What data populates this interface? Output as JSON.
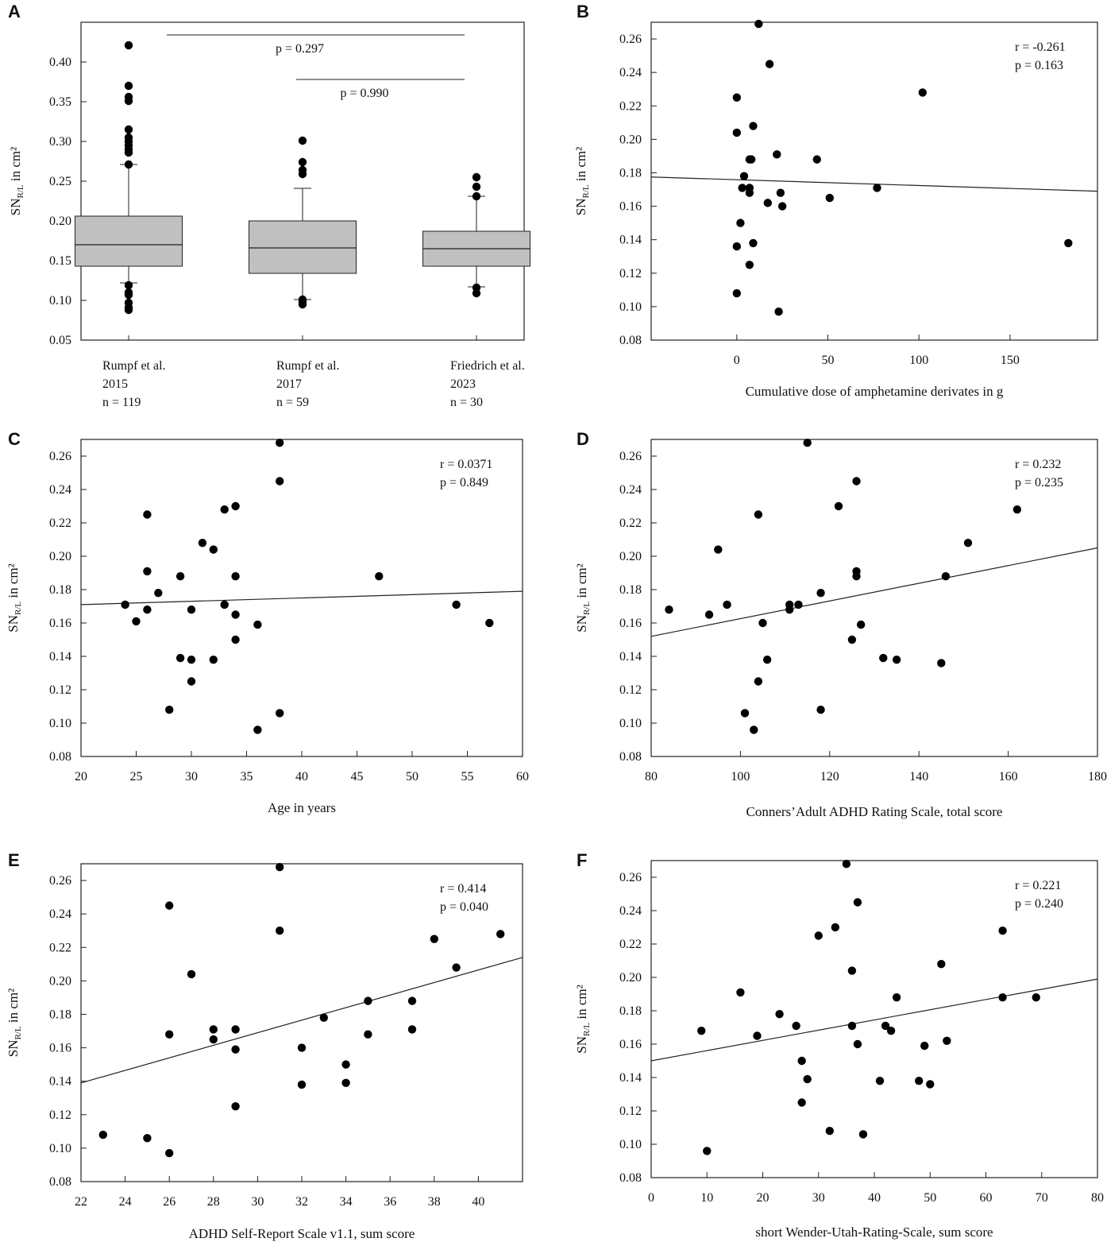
{
  "figure_title": "",
  "chart_data": [
    {
      "id": "A",
      "type": "box",
      "panel_label": "A",
      "ylabel_main": "SN",
      "ylabel_sub": "R/L",
      "ylabel_rest": " in cm²",
      "xlabel": "",
      "ylim": [
        0.05,
        0.45
      ],
      "yticks": [
        "0.05",
        "0.10",
        "0.15",
        "0.20",
        "0.25",
        "0.30",
        "0.35",
        "0.40"
      ],
      "groups": [
        {
          "line1": "Rumpf et al.",
          "line2": "2015",
          "line3": "n = 119",
          "q1": 0.143,
          "median": 0.17,
          "q3": 0.206,
          "whisker_low": 0.122,
          "whisker_high": 0.271,
          "outliers": [
            0.421,
            0.37,
            0.356,
            0.351,
            0.315,
            0.305,
            0.3,
            0.295,
            0.29,
            0.286,
            0.271,
            0.119,
            0.11,
            0.107,
            0.097,
            0.091,
            0.088
          ]
        },
        {
          "line1": "Rumpf et al.",
          "line2": "2017",
          "line3": "n = 59",
          "q1": 0.134,
          "median": 0.166,
          "q3": 0.2,
          "whisker_low": 0.101,
          "whisker_high": 0.241,
          "outliers": [
            0.301,
            0.274,
            0.264,
            0.259,
            0.101,
            0.098,
            0.095
          ]
        },
        {
          "line1": "Friedrich et al.",
          "line2": "2023",
          "line3": " n = 30",
          "q1": 0.143,
          "median": 0.165,
          "q3": 0.187,
          "whisker_low": 0.117,
          "whisker_high": 0.231,
          "outliers": [
            0.255,
            0.243,
            0.231,
            0.116,
            0.109
          ]
        }
      ],
      "comparisons": [
        {
          "label": "p = 0.297",
          "y": 0.434,
          "from_group": 0,
          "to_group": 2
        },
        {
          "label": "p = 0.990",
          "y": 0.378,
          "from_group": 1,
          "to_group": 2
        }
      ]
    },
    {
      "id": "B",
      "type": "scatter",
      "panel_label": "B",
      "ylabel_main": "SN",
      "ylabel_sub": "R/L",
      "ylabel_rest": " in cm²",
      "xlabel": "Cumulative dose of amphetamine derivates in g",
      "xlim": [
        -47,
        198
      ],
      "ylim": [
        0.08,
        0.27
      ],
      "xticks": [
        0,
        50,
        100,
        150
      ],
      "yticks": [
        "0.08",
        "0.10",
        "0.12",
        "0.14",
        "0.16",
        "0.18",
        "0.20",
        "0.22",
        "0.24",
        "0.26"
      ],
      "stat_r": "r = -0.261",
      "stat_p": "p = 0.163",
      "fit": {
        "x0": -47,
        "y0": 0.1775,
        "x1": 198,
        "y1": 0.169
      },
      "points": [
        [
          12,
          0.269
        ],
        [
          18,
          0.245
        ],
        [
          0,
          0.225
        ],
        [
          102,
          0.228
        ],
        [
          0,
          0.204
        ],
        [
          9,
          0.208
        ],
        [
          22,
          0.191
        ],
        [
          7,
          0.188
        ],
        [
          8,
          0.188
        ],
        [
          44,
          0.188
        ],
        [
          4,
          0.178
        ],
        [
          3,
          0.171
        ],
        [
          7,
          0.171
        ],
        [
          7,
          0.168
        ],
        [
          77,
          0.171
        ],
        [
          24,
          0.168
        ],
        [
          17,
          0.162
        ],
        [
          25,
          0.16
        ],
        [
          51,
          0.165
        ],
        [
          2,
          0.15
        ],
        [
          9,
          0.138
        ],
        [
          0,
          0.136
        ],
        [
          7,
          0.125
        ],
        [
          0,
          0.108
        ],
        [
          23,
          0.097
        ],
        [
          182,
          0.138
        ]
      ]
    },
    {
      "id": "C",
      "type": "scatter",
      "panel_label": "C",
      "ylabel_main": "SN",
      "ylabel_sub": "R/L",
      "ylabel_rest": " in cm²",
      "xlabel": "Age in years",
      "xlim": [
        20,
        60
      ],
      "ylim": [
        0.08,
        0.27
      ],
      "xticks": [
        20,
        25,
        30,
        35,
        40,
        45,
        50,
        55,
        60
      ],
      "yticks": [
        "0.08",
        "0.10",
        "0.12",
        "0.14",
        "0.16",
        "0.18",
        "0.20",
        "0.22",
        "0.24",
        "0.26"
      ],
      "stat_r": "r = 0.0371",
      "stat_p": "p = 0.849",
      "fit": {
        "x0": 20,
        "y0": 0.171,
        "x1": 60,
        "y1": 0.179
      },
      "points": [
        [
          38,
          0.268
        ],
        [
          38,
          0.245
        ],
        [
          26,
          0.225
        ],
        [
          33,
          0.228
        ],
        [
          34,
          0.23
        ],
        [
          31,
          0.208
        ],
        [
          32,
          0.204
        ],
        [
          26,
          0.191
        ],
        [
          29,
          0.188
        ],
        [
          34,
          0.188
        ],
        [
          47,
          0.188
        ],
        [
          27,
          0.178
        ],
        [
          24,
          0.171
        ],
        [
          33,
          0.171
        ],
        [
          54,
          0.171
        ],
        [
          26,
          0.168
        ],
        [
          30,
          0.168
        ],
        [
          34,
          0.165
        ],
        [
          25,
          0.161
        ],
        [
          36,
          0.159
        ],
        [
          57,
          0.16
        ],
        [
          34,
          0.15
        ],
        [
          29,
          0.139
        ],
        [
          30,
          0.138
        ],
        [
          32,
          0.138
        ],
        [
          30,
          0.125
        ],
        [
          28,
          0.108
        ],
        [
          38,
          0.106
        ],
        [
          36,
          0.096
        ]
      ]
    },
    {
      "id": "D",
      "type": "scatter",
      "panel_label": "D",
      "ylabel_main": "SN",
      "ylabel_sub": "R/L",
      "ylabel_rest": " in cm²",
      "xlabel": "Conners’Adult ADHD Rating Scale, total score",
      "xlim": [
        80,
        180
      ],
      "ylim": [
        0.08,
        0.27
      ],
      "xticks": [
        80,
        100,
        120,
        140,
        160,
        180
      ],
      "yticks": [
        "0.08",
        "0.10",
        "0.12",
        "0.14",
        "0.16",
        "0.18",
        "0.20",
        "0.22",
        "0.24",
        "0.26"
      ],
      "stat_r": "r = 0.232",
      "stat_p": "p = 0.235",
      "fit": {
        "x0": 80,
        "y0": 0.152,
        "x1": 180,
        "y1": 0.205
      },
      "points": [
        [
          115,
          0.268
        ],
        [
          126,
          0.245
        ],
        [
          122,
          0.23
        ],
        [
          162,
          0.228
        ],
        [
          104,
          0.225
        ],
        [
          151,
          0.208
        ],
        [
          95,
          0.204
        ],
        [
          126,
          0.191
        ],
        [
          126,
          0.188
        ],
        [
          146,
          0.188
        ],
        [
          118,
          0.178
        ],
        [
          97,
          0.171
        ],
        [
          111,
          0.171
        ],
        [
          113,
          0.171
        ],
        [
          84,
          0.168
        ],
        [
          111,
          0.168
        ],
        [
          93,
          0.165
        ],
        [
          105,
          0.16
        ],
        [
          127,
          0.159
        ],
        [
          125,
          0.15
        ],
        [
          132,
          0.139
        ],
        [
          135,
          0.138
        ],
        [
          106,
          0.138
        ],
        [
          145,
          0.136
        ],
        [
          104,
          0.125
        ],
        [
          118,
          0.108
        ],
        [
          101,
          0.106
        ],
        [
          103,
          0.096
        ]
      ]
    },
    {
      "id": "E",
      "type": "scatter",
      "panel_label": "E",
      "ylabel_main": "SN",
      "ylabel_sub": "R/L",
      "ylabel_rest": " in cm²",
      "xlabel": "ADHD Self-Report Scale v1.1, sum score",
      "xlim": [
        22,
        42
      ],
      "ylim": [
        0.08,
        0.27
      ],
      "xticks": [
        22,
        24,
        26,
        28,
        30,
        32,
        34,
        36,
        38,
        40
      ],
      "yticks": [
        "0.08",
        "0.10",
        "0.12",
        "0.14",
        "0.16",
        "0.18",
        "0.20",
        "0.22",
        "0.24",
        "0.26"
      ],
      "stat_r": "r = 0.414",
      "stat_p": "p = 0.040",
      "fit": {
        "x0": 22,
        "y0": 0.139,
        "x1": 42,
        "y1": 0.214
      },
      "points": [
        [
          31,
          0.268
        ],
        [
          26,
          0.245
        ],
        [
          31,
          0.23
        ],
        [
          41,
          0.228
        ],
        [
          38,
          0.225
        ],
        [
          39,
          0.208
        ],
        [
          27,
          0.204
        ],
        [
          35,
          0.188
        ],
        [
          37,
          0.188
        ],
        [
          33,
          0.178
        ],
        [
          28,
          0.171
        ],
        [
          29,
          0.171
        ],
        [
          37,
          0.171
        ],
        [
          26,
          0.168
        ],
        [
          35,
          0.168
        ],
        [
          28,
          0.165
        ],
        [
          29,
          0.159
        ],
        [
          32,
          0.16
        ],
        [
          34,
          0.15
        ],
        [
          32,
          0.138
        ],
        [
          34,
          0.139
        ],
        [
          29,
          0.125
        ],
        [
          23,
          0.108
        ],
        [
          25,
          0.106
        ],
        [
          26,
          0.097
        ]
      ]
    },
    {
      "id": "F",
      "type": "scatter",
      "panel_label": "F",
      "ylabel_main": "SN",
      "ylabel_sub": "R/L",
      "ylabel_rest": " in cm²",
      "xlabel": "short Wender-Utah-Rating-Scale, sum score",
      "xlim": [
        0,
        80
      ],
      "ylim": [
        0.08,
        0.27
      ],
      "xticks": [
        0,
        10,
        20,
        30,
        40,
        50,
        60,
        70,
        80
      ],
      "yticks": [
        "0.08",
        "0.10",
        "0.12",
        "0.14",
        "0.16",
        "0.18",
        "0.20",
        "0.22",
        "0.24",
        "0.26"
      ],
      "stat_r": "r = 0.221",
      "stat_p": "p = 0.240",
      "fit": {
        "x0": 0,
        "y0": 0.15,
        "x1": 80,
        "y1": 0.199
      },
      "points": [
        [
          35,
          0.268
        ],
        [
          37,
          0.245
        ],
        [
          30,
          0.225
        ],
        [
          33,
          0.23
        ],
        [
          63,
          0.228
        ],
        [
          36,
          0.204
        ],
        [
          52,
          0.208
        ],
        [
          16,
          0.191
        ],
        [
          44,
          0.188
        ],
        [
          63,
          0.188
        ],
        [
          69,
          0.188
        ],
        [
          23,
          0.178
        ],
        [
          26,
          0.171
        ],
        [
          36,
          0.171
        ],
        [
          42,
          0.171
        ],
        [
          9,
          0.168
        ],
        [
          43,
          0.168
        ],
        [
          19,
          0.165
        ],
        [
          53,
          0.162
        ],
        [
          37,
          0.16
        ],
        [
          49,
          0.159
        ],
        [
          27,
          0.15
        ],
        [
          28,
          0.139
        ],
        [
          41,
          0.138
        ],
        [
          48,
          0.138
        ],
        [
          50,
          0.136
        ],
        [
          27,
          0.125
        ],
        [
          32,
          0.108
        ],
        [
          38,
          0.106
        ],
        [
          10,
          0.096
        ]
      ]
    }
  ]
}
